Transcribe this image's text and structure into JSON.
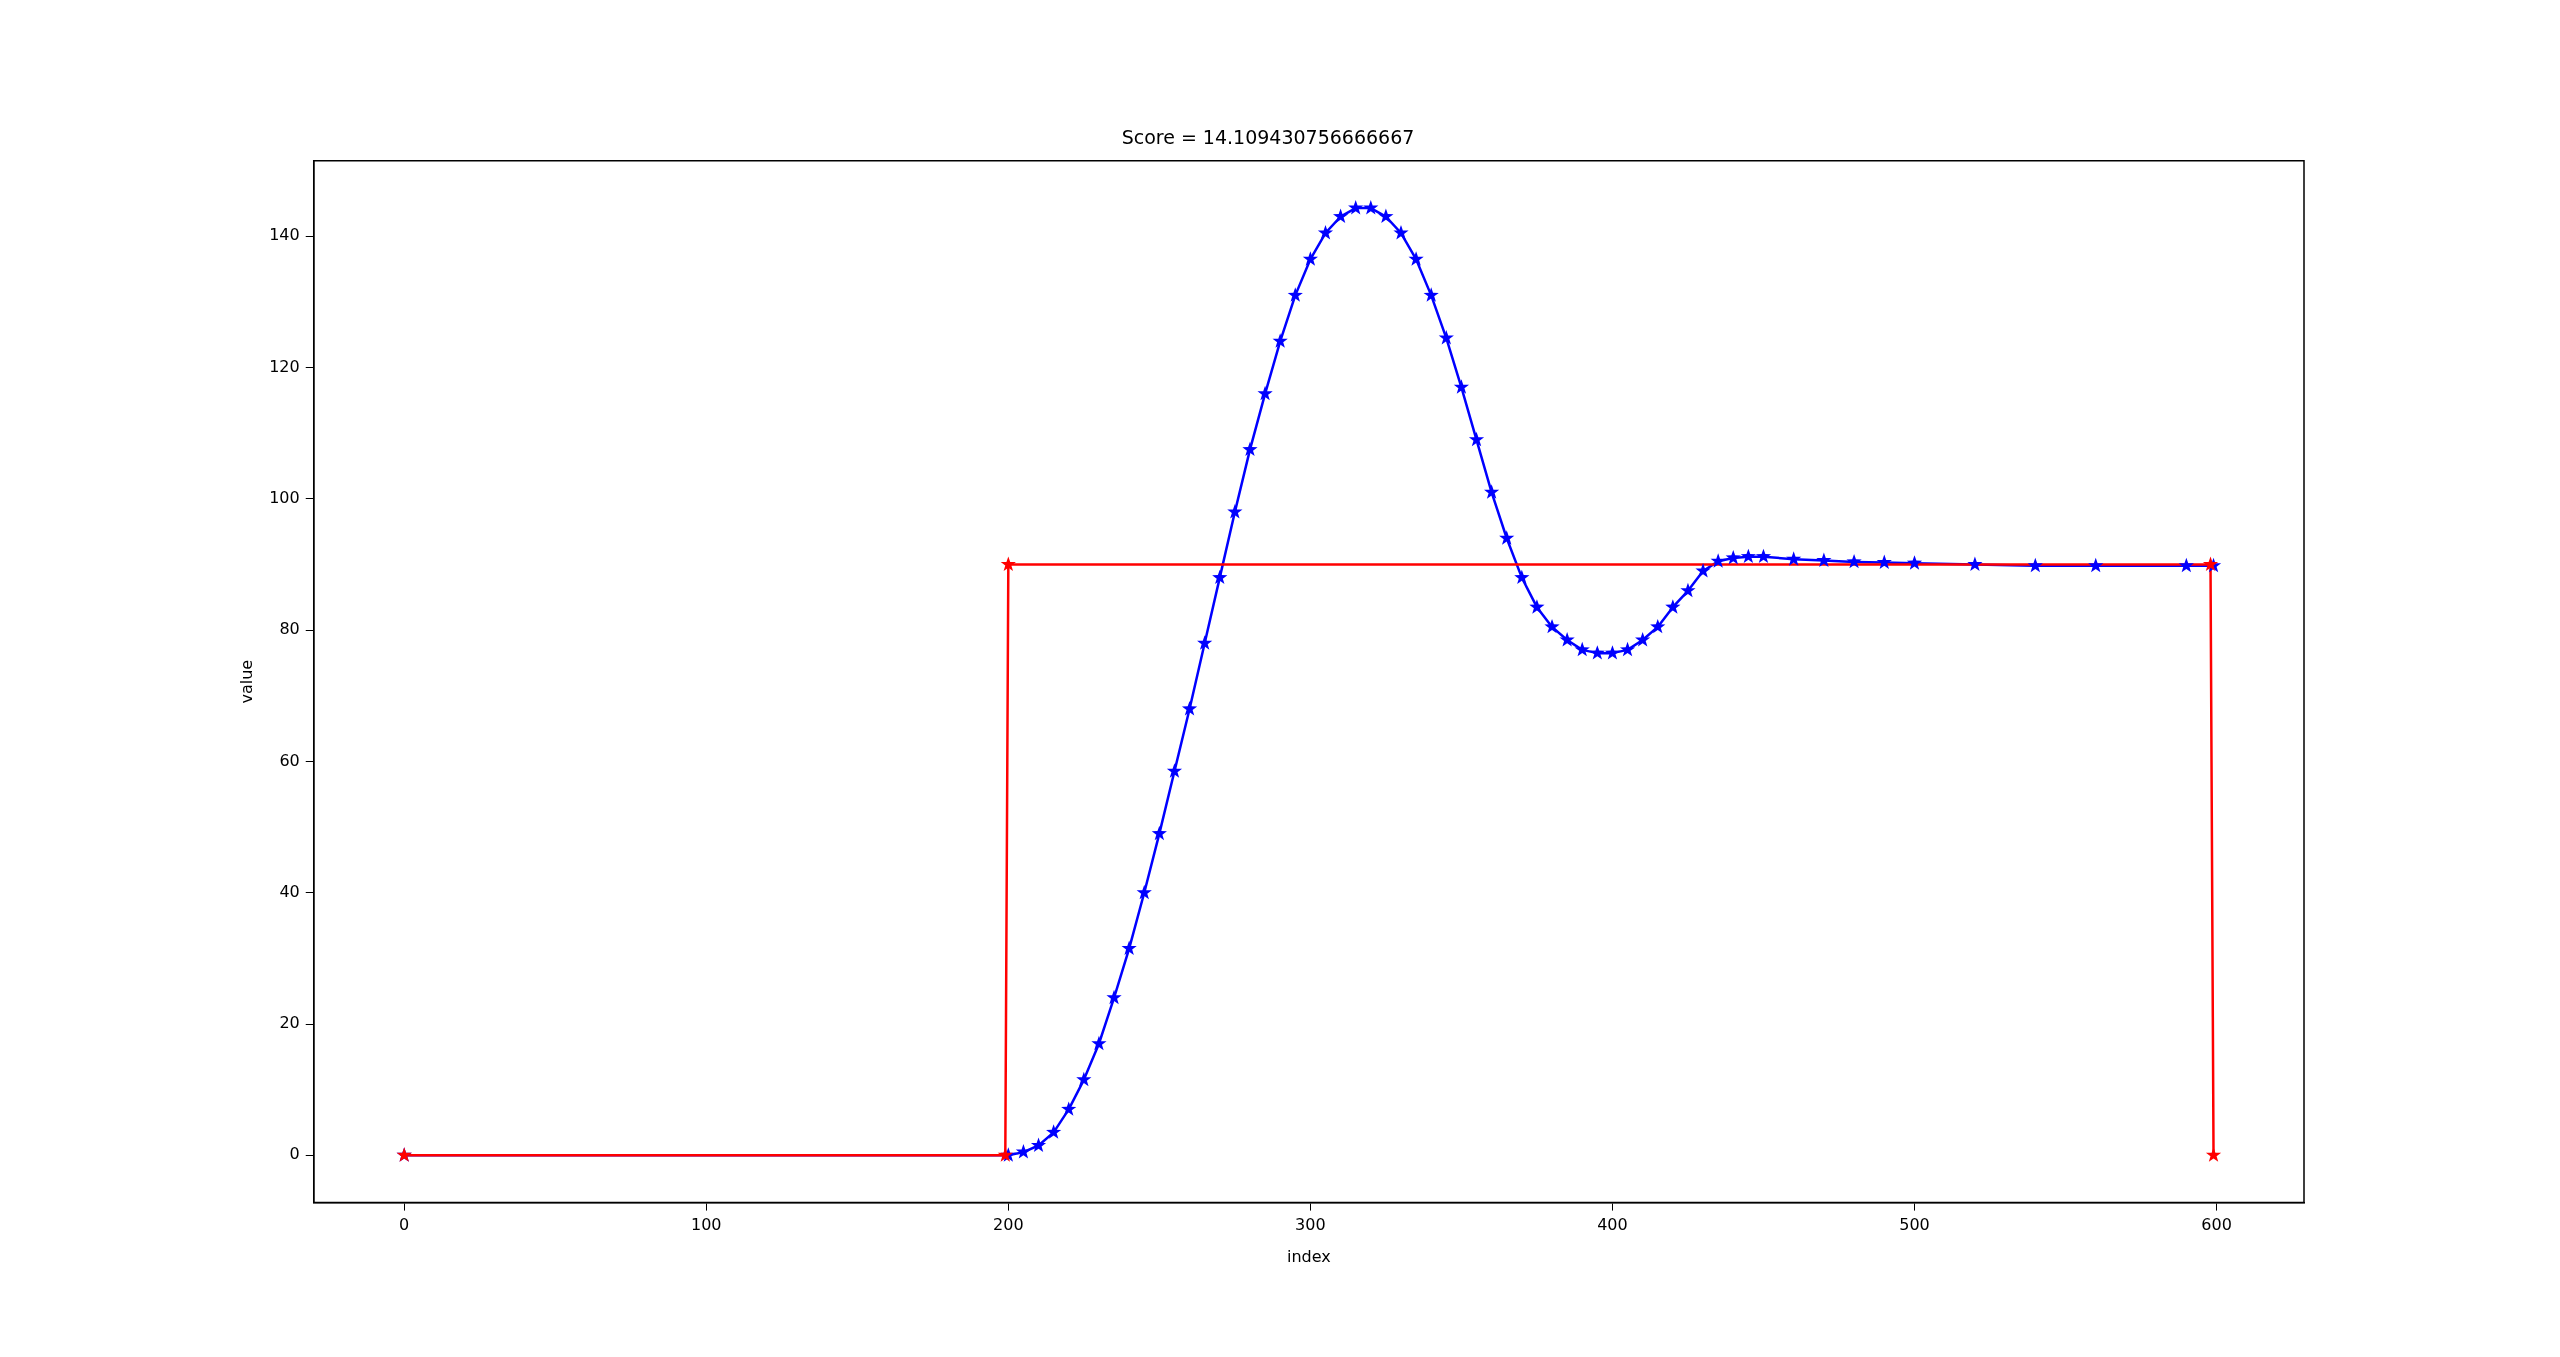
{
  "chart_data": {
    "type": "line",
    "title": "Score = 14.109430756666667",
    "xlabel": "index",
    "ylabel": "value",
    "xlim": [
      -29.95,
      628.95
    ],
    "ylim": [
      -7.2,
      151.5
    ],
    "xticks": [
      0,
      100,
      200,
      300,
      400,
      500,
      600
    ],
    "yticks": [
      0,
      20,
      40,
      60,
      80,
      100,
      120,
      140
    ],
    "grid": false,
    "legend": false,
    "marker": "star",
    "line_style": "solid",
    "series": [
      {
        "color": "#ff0000",
        "x": [
          0,
          199,
          200,
          598,
          599
        ],
        "values": [
          0,
          0,
          90,
          90,
          0
        ]
      },
      {
        "color": "#0000ff",
        "x": [
          0,
          200,
          205,
          210,
          215,
          220,
          225,
          230,
          235,
          240,
          245,
          250,
          255,
          260,
          265,
          270,
          275,
          280,
          285,
          290,
          295,
          300,
          305,
          310,
          315,
          320,
          325,
          330,
          335,
          340,
          345,
          350,
          355,
          360,
          365,
          370,
          375,
          380,
          385,
          390,
          395,
          400,
          405,
          410,
          415,
          420,
          425,
          430,
          435,
          440,
          445,
          450,
          460,
          470,
          480,
          490,
          500,
          520,
          540,
          560,
          590,
          599
        ],
        "values": [
          0,
          0,
          0.5,
          1.5,
          3.5,
          7,
          11.5,
          17,
          24,
          31.5,
          40,
          49,
          58.5,
          68,
          78,
          88,
          98,
          107.5,
          116,
          124,
          131,
          136.5,
          140.5,
          143,
          144.3,
          144.3,
          143,
          140.5,
          136.5,
          131,
          124.5,
          117,
          109,
          101,
          94,
          88,
          83.5,
          80.5,
          78.5,
          77,
          76.5,
          76.5,
          77,
          78.5,
          80.5,
          83.5,
          86,
          89,
          90.5,
          91,
          91.2,
          91.2,
          90.8,
          90.6,
          90.4,
          90.3,
          90.2,
          90,
          89.8,
          89.8,
          89.8,
          89.8
        ]
      }
    ]
  }
}
